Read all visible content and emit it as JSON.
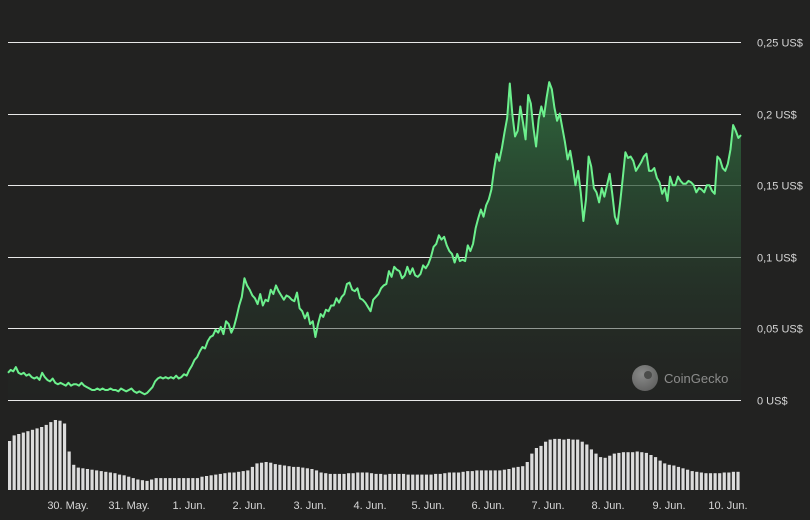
{
  "watermark": {
    "text": "CoinGecko"
  },
  "chart_data": {
    "type": "area",
    "price_axis": {
      "unit": "US$",
      "min": 0,
      "max": 0.25,
      "ticks": [
        {
          "value": 0,
          "label": "0 US$"
        },
        {
          "value": 0.05,
          "label": "0,05 US$"
        },
        {
          "value": 0.1,
          "label": "0,1 US$"
        },
        {
          "value": 0.15,
          "label": "0,15 US$"
        },
        {
          "value": 0.2,
          "label": "0,2 US$"
        },
        {
          "value": 0.25,
          "label": "0,25 US$"
        }
      ]
    },
    "x_axis": {
      "ticks": [
        "30. May.",
        "31. May.",
        "1. Jun.",
        "2. Jun.",
        "3. Jun.",
        "4. Jun.",
        "5. Jun.",
        "6. Jun.",
        "7. Jun.",
        "8. Jun.",
        "9. Jun.",
        "10. Jun."
      ]
    },
    "grid": true,
    "legend": "none",
    "colors": {
      "line": "#6cf08d",
      "fill_top": "#2f6b3e",
      "fill_bottom": "#232523",
      "volume": "#dcdcdc",
      "grid": "#e8e8e8",
      "background": "#222221"
    },
    "series": [
      {
        "values": [
          0.019,
          0.021,
          0.02,
          0.023,
          0.019,
          0.018,
          0.019,
          0.017,
          0.018,
          0.016,
          0.015,
          0.016,
          0.014,
          0.019,
          0.016,
          0.014,
          0.013,
          0.015,
          0.012,
          0.011,
          0.012,
          0.011,
          0.01,
          0.012,
          0.01,
          0.011,
          0.011,
          0.01,
          0.012,
          0.01,
          0.009,
          0.008,
          0.007,
          0.007,
          0.008,
          0.007,
          0.008,
          0.007,
          0.007,
          0.008,
          0.007,
          0.007,
          0.006,
          0.008,
          0.007,
          0.006,
          0.007,
          0.008,
          0.006,
          0.005,
          0.006,
          0.005,
          0.004,
          0.005,
          0.007,
          0.009,
          0.013,
          0.015,
          0.016,
          0.015,
          0.016,
          0.015,
          0.016,
          0.015,
          0.017,
          0.015,
          0.016,
          0.018,
          0.017,
          0.021,
          0.024,
          0.028,
          0.03,
          0.034,
          0.037,
          0.036,
          0.041,
          0.044,
          0.045,
          0.049,
          0.047,
          0.051,
          0.046,
          0.055,
          0.053,
          0.047,
          0.051,
          0.058,
          0.066,
          0.072,
          0.085,
          0.08,
          0.077,
          0.073,
          0.071,
          0.067,
          0.074,
          0.066,
          0.07,
          0.069,
          0.077,
          0.074,
          0.08,
          0.076,
          0.073,
          0.07,
          0.073,
          0.072,
          0.07,
          0.069,
          0.075,
          0.064,
          0.062,
          0.057,
          0.061,
          0.053,
          0.055,
          0.044,
          0.053,
          0.06,
          0.058,
          0.063,
          0.062,
          0.066,
          0.066,
          0.071,
          0.068,
          0.072,
          0.074,
          0.081,
          0.082,
          0.077,
          0.076,
          0.078,
          0.071,
          0.07,
          0.068,
          0.065,
          0.062,
          0.07,
          0.072,
          0.074,
          0.078,
          0.08,
          0.081,
          0.09,
          0.086,
          0.093,
          0.091,
          0.09,
          0.085,
          0.087,
          0.093,
          0.088,
          0.092,
          0.087,
          0.086,
          0.088,
          0.094,
          0.092,
          0.095,
          0.1,
          0.107,
          0.109,
          0.115,
          0.112,
          0.114,
          0.108,
          0.104,
          0.102,
          0.096,
          0.102,
          0.097,
          0.098,
          0.097,
          0.108,
          0.104,
          0.109,
          0.12,
          0.127,
          0.133,
          0.128,
          0.136,
          0.14,
          0.147,
          0.161,
          0.172,
          0.167,
          0.176,
          0.187,
          0.197,
          0.221,
          0.199,
          0.184,
          0.188,
          0.205,
          0.194,
          0.182,
          0.213,
          0.207,
          0.19,
          0.177,
          0.196,
          0.205,
          0.198,
          0.211,
          0.222,
          0.217,
          0.204,
          0.195,
          0.2,
          0.19,
          0.18,
          0.168,
          0.174,
          0.163,
          0.15,
          0.16,
          0.145,
          0.125,
          0.14,
          0.17,
          0.163,
          0.148,
          0.145,
          0.138,
          0.148,
          0.142,
          0.15,
          0.158,
          0.144,
          0.128,
          0.123,
          0.138,
          0.155,
          0.173,
          0.169,
          0.17,
          0.167,
          0.16,
          0.163,
          0.166,
          0.17,
          0.172,
          0.16,
          0.16,
          0.162,
          0.155,
          0.152,
          0.144,
          0.148,
          0.139,
          0.156,
          0.15,
          0.15,
          0.156,
          0.153,
          0.151,
          0.151,
          0.153,
          0.152,
          0.15,
          0.145,
          0.148,
          0.147,
          0.145,
          0.15,
          0.15,
          0.146,
          0.144,
          0.17,
          0.168,
          0.162,
          0.16,
          0.165,
          0.175,
          0.192,
          0.188,
          0.183,
          0.185
        ]
      }
    ],
    "volume": {
      "values": [
        0.7,
        0.78,
        0.8,
        0.82,
        0.84,
        0.86,
        0.88,
        0.9,
        0.93,
        0.97,
        1.0,
        0.99,
        0.95,
        0.55,
        0.36,
        0.32,
        0.31,
        0.3,
        0.29,
        0.28,
        0.27,
        0.26,
        0.25,
        0.24,
        0.22,
        0.21,
        0.19,
        0.17,
        0.15,
        0.14,
        0.13,
        0.15,
        0.17,
        0.17,
        0.17,
        0.17,
        0.17,
        0.17,
        0.17,
        0.17,
        0.17,
        0.17,
        0.19,
        0.2,
        0.21,
        0.22,
        0.23,
        0.24,
        0.25,
        0.25,
        0.26,
        0.27,
        0.28,
        0.33,
        0.38,
        0.39,
        0.4,
        0.39,
        0.37,
        0.36,
        0.35,
        0.34,
        0.33,
        0.33,
        0.32,
        0.31,
        0.3,
        0.28,
        0.25,
        0.24,
        0.23,
        0.23,
        0.23,
        0.23,
        0.24,
        0.24,
        0.25,
        0.25,
        0.25,
        0.24,
        0.23,
        0.23,
        0.22,
        0.23,
        0.23,
        0.23,
        0.23,
        0.22,
        0.22,
        0.22,
        0.22,
        0.22,
        0.22,
        0.23,
        0.23,
        0.24,
        0.25,
        0.25,
        0.25,
        0.26,
        0.27,
        0.27,
        0.28,
        0.28,
        0.28,
        0.28,
        0.28,
        0.28,
        0.29,
        0.3,
        0.32,
        0.33,
        0.34,
        0.4,
        0.52,
        0.6,
        0.63,
        0.69,
        0.72,
        0.73,
        0.73,
        0.72,
        0.73,
        0.72,
        0.72,
        0.69,
        0.65,
        0.58,
        0.52,
        0.47,
        0.46,
        0.49,
        0.52,
        0.53,
        0.54,
        0.54,
        0.54,
        0.55,
        0.54,
        0.53,
        0.5,
        0.47,
        0.42,
        0.38,
        0.36,
        0.35,
        0.33,
        0.31,
        0.29,
        0.27,
        0.26,
        0.25,
        0.24,
        0.24,
        0.24,
        0.24,
        0.25,
        0.25,
        0.26,
        0.26
      ]
    }
  }
}
